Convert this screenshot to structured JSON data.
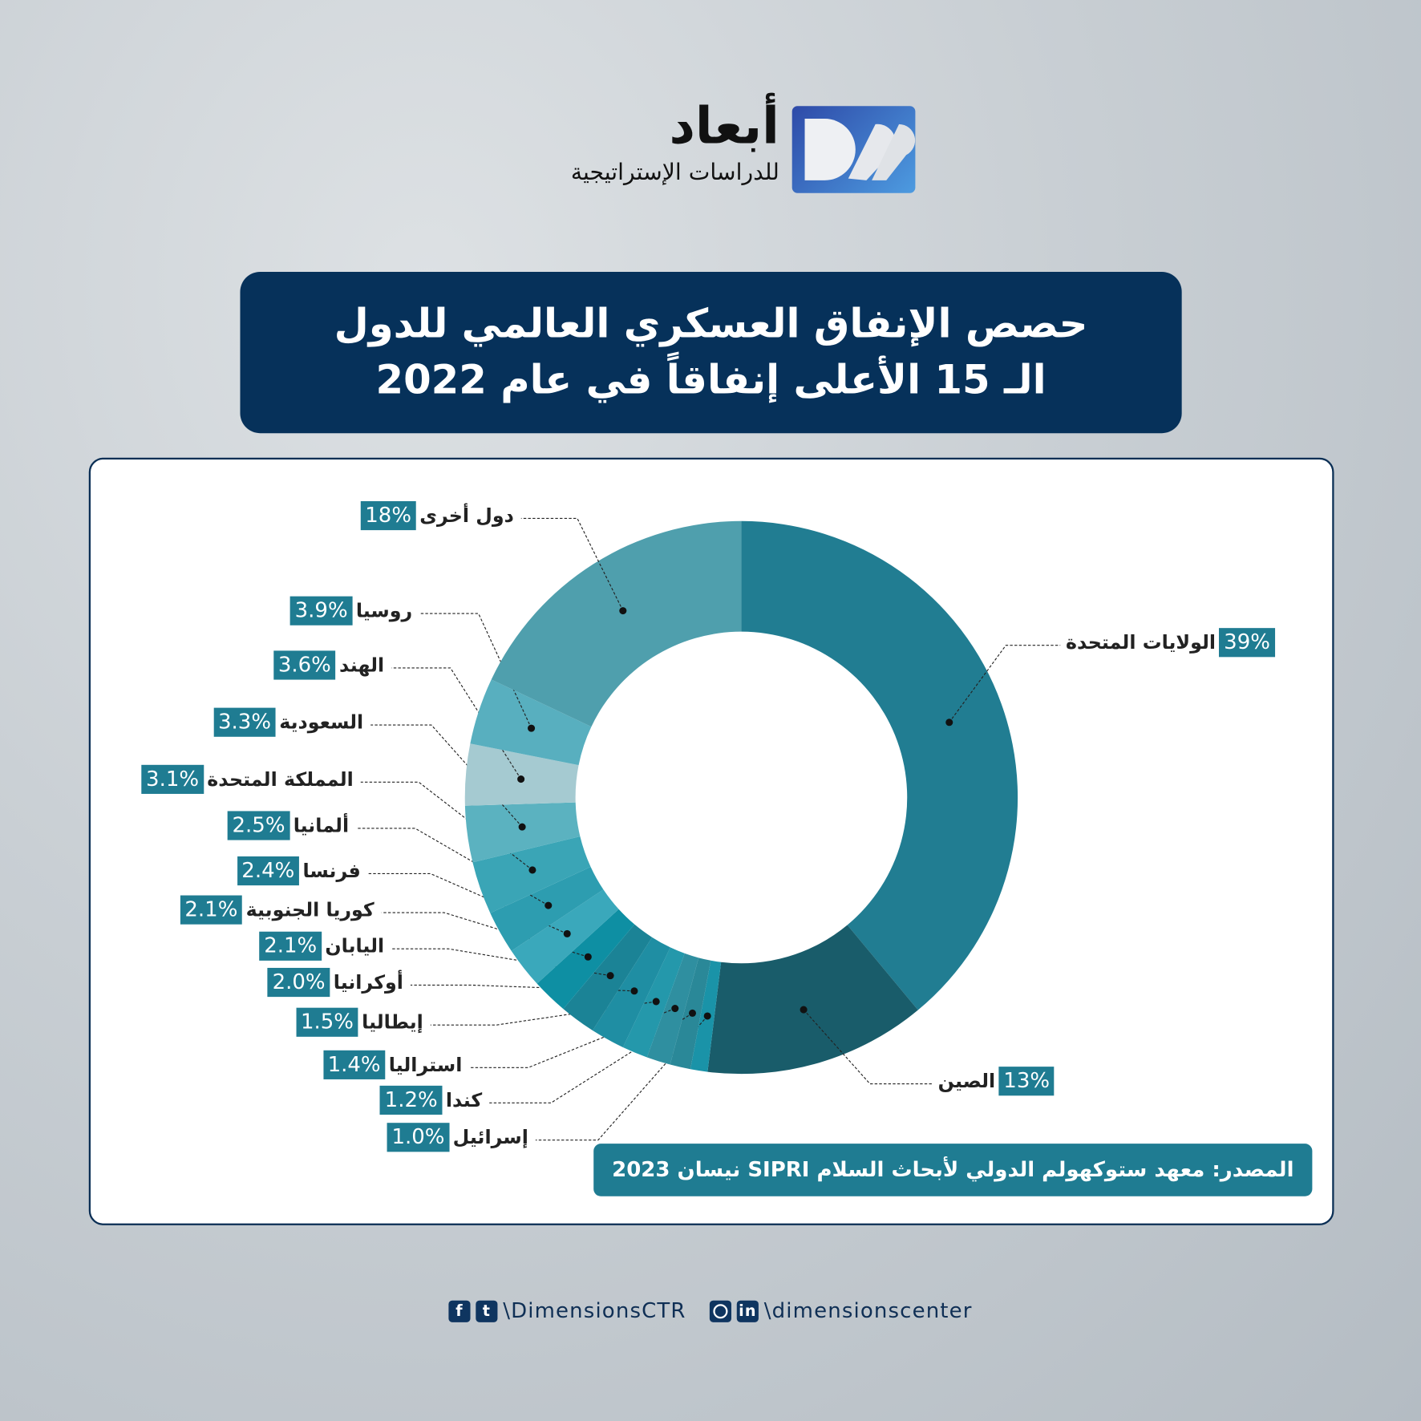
{
  "logo": {
    "name_ar": "أبعاد",
    "subtitle_ar": "للدراسات الإستراتيجية",
    "mark": "DSS"
  },
  "title": {
    "line1": "حصص الإنفاق العسكري العالمي للدول",
    "line2": "الـ 15 الأعلى إنفاقاً في عام 2022"
  },
  "chart_data": {
    "type": "pie",
    "donut": true,
    "categories": [
      "الولايات المتحدة",
      "الصين",
      "إسرائيل",
      "كندا",
      "استراليا",
      "إيطاليا",
      "أوكرانيا",
      "اليابان",
      "كوريا الجنوبية",
      "فرنسا",
      "ألمانيا",
      "المملكة المتحدة",
      "السعودية",
      "الهند",
      "روسيا",
      "دول أخرى"
    ],
    "values": [
      39,
      13,
      1.0,
      1.2,
      1.4,
      1.5,
      2.0,
      2.1,
      2.1,
      2.4,
      2.5,
      3.1,
      3.3,
      3.6,
      3.9,
      18
    ],
    "labels": [
      "39%",
      "13%",
      "1.0%",
      "1.2%",
      "1.4%",
      "1.5%",
      "2.0%",
      "2.1%",
      "2.1%",
      "2.4%",
      "2.5%",
      "3.1%",
      "3.3%",
      "3.6%",
      "3.9%",
      "18%"
    ],
    "colors": [
      "#217d92",
      "#195c6a",
      "#1a93a8",
      "#2a8898",
      "#2f8fa0",
      "#2498ab",
      "#1f8ea3",
      "#1b8396",
      "#0e8fa3",
      "#3aa8bb",
      "#2d9db0",
      "#3aa5b6",
      "#5bb2c0",
      "#a5cad1",
      "#58afbf",
      "#4f9fad"
    ],
    "start": "top",
    "direction": "clockwise"
  },
  "source": "المصدر: معهد ستوكهولم الدولي لأبحاث السلام  SIPRI نيسان 2023",
  "footer": {
    "handle1": "\\DimensionsCTR",
    "handle2": "\\dimensionscenter",
    "icons": [
      "facebook-icon",
      "twitter-icon",
      "instagram-icon",
      "linkedin-icon"
    ]
  }
}
